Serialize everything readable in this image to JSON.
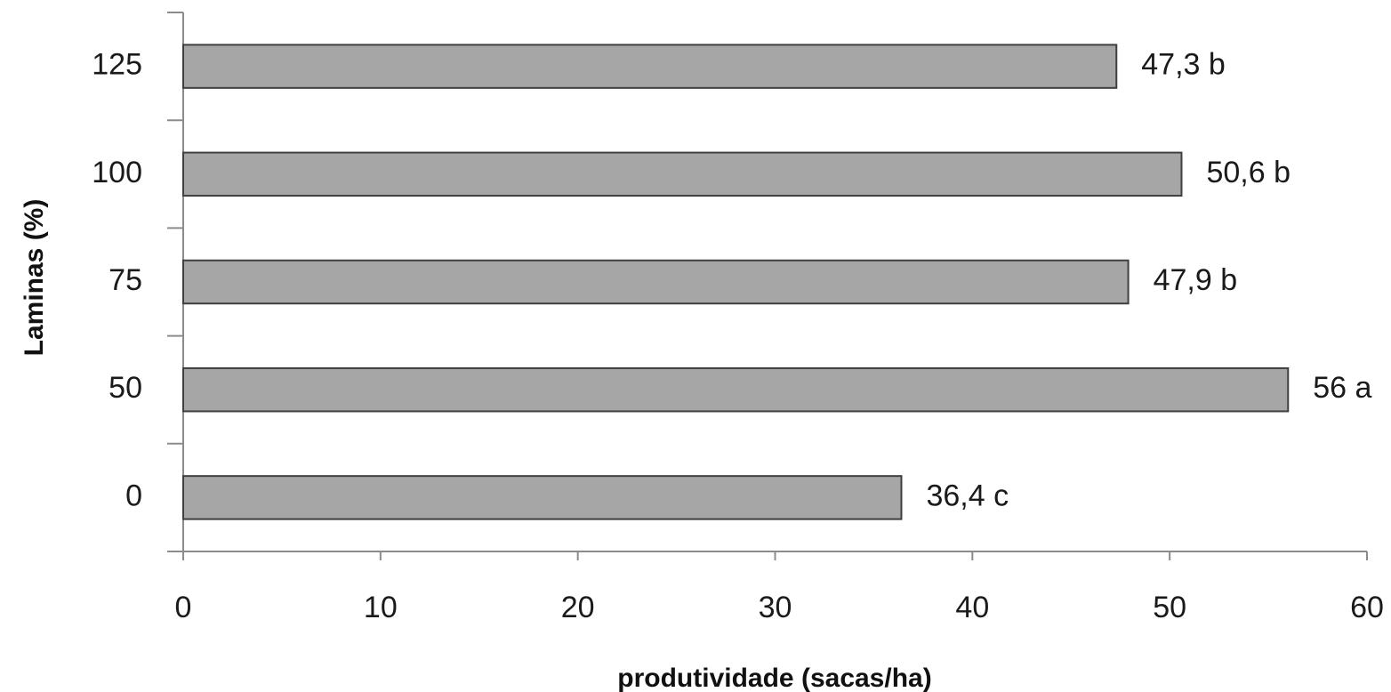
{
  "chart_data": {
    "type": "bar",
    "orientation": "horizontal",
    "categories": [
      "0",
      "50",
      "75",
      "100",
      "125"
    ],
    "values": [
      36.4,
      56,
      47.9,
      50.6,
      47.3
    ],
    "data_labels": [
      "36,4 c",
      "56 a",
      "47,9 b",
      "50,6 b",
      "47,3 b"
    ],
    "xlabel": "produtividade (sacas/ha)",
    "ylabel": "Laminas (%)",
    "xlim": [
      0,
      60
    ],
    "xticks": [
      0,
      10,
      20,
      30,
      40,
      50,
      60
    ],
    "xtick_labels": [
      "0",
      "10",
      "20",
      "30",
      "40",
      "50",
      "60"
    ],
    "grid": false,
    "bar_color": "#a6a6a6",
    "bar_edge_color": "#3f3f3f"
  }
}
